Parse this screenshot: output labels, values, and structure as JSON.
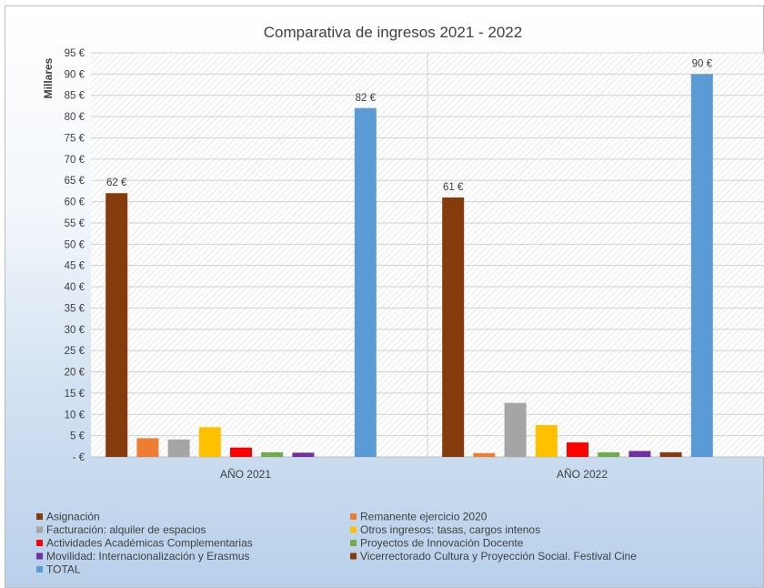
{
  "chart_data": {
    "type": "bar",
    "title": "Comparativa de ingresos 2021 - 2022",
    "ylabel": "Millares",
    "ylim": [
      0,
      95
    ],
    "ytick_step": 5,
    "ytick_labels": [
      "- €",
      "5 €",
      "10 €",
      "15 €",
      "20 €",
      "25 €",
      "30 €",
      "35 €",
      "40 €",
      "45 €",
      "50 €",
      "55 €",
      "60 €",
      "65 €",
      "70 €",
      "75 €",
      "80 €",
      "85 €",
      "90 €",
      "95 €"
    ],
    "categories": [
      "AÑO 2021",
      "AÑO 2022"
    ],
    "grid": true,
    "legend_position": "bottom",
    "series": [
      {
        "name": "Asignación",
        "color": "#843c0c",
        "values": [
          62,
          61
        ],
        "labels": [
          "62 €",
          "61 €"
        ]
      },
      {
        "name": "Remanente ejercicio 2020",
        "color": "#ed7d31",
        "values": [
          4.4,
          0.9
        ]
      },
      {
        "name": "Facturación: alquiler de espacios",
        "color": "#a5a5a5",
        "values": [
          4.1,
          12.7
        ]
      },
      {
        "name": "Otros ingresos: tasas, cargos intenos",
        "color": "#ffc000",
        "values": [
          7.0,
          7.5
        ]
      },
      {
        "name": "Actividades Académicas Complementarias",
        "color": "#ff0000",
        "values": [
          2.2,
          3.4
        ]
      },
      {
        "name": "Proyectos de Innovación Docente",
        "color": "#70ad47",
        "values": [
          1.1,
          1.1
        ]
      },
      {
        "name": "Movilidad: Internacionalización y Erasmus",
        "color": "#7030a0",
        "values": [
          1.0,
          1.4
        ]
      },
      {
        "name": "Vicerrectorado Cultura y Proyección Social. Festival Cine",
        "color": "#8b3a0f",
        "values": [
          0,
          1.1
        ]
      },
      {
        "name": "TOTAL",
        "color": "#5b9bd5",
        "values": [
          82,
          90
        ],
        "labels": [
          "82 €",
          "90 €"
        ]
      }
    ]
  }
}
